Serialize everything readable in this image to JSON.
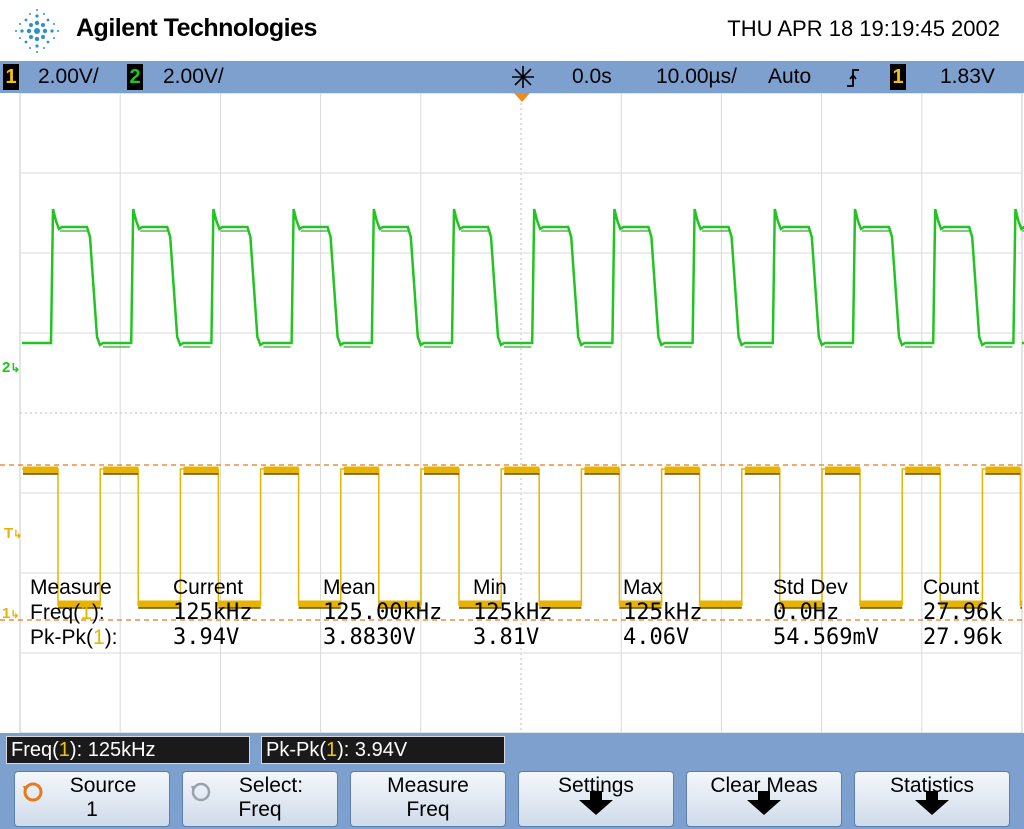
{
  "header": {
    "brand": "Agilent Technologies",
    "datetime": "THU APR 18 19:19:45 2002"
  },
  "statusbar": {
    "ch1_number": "1",
    "ch1_scale": "2.00V/",
    "ch2_number": "2",
    "ch2_scale": "2.00V/",
    "time_delay": "0.0s",
    "time_base": "10.00µs/",
    "trigger_mode": "Auto",
    "trigger_source": "1",
    "trigger_level": "1.83V"
  },
  "markers": {
    "ch2_ground": "2",
    "trigger": "T",
    "ch1_ground": "1"
  },
  "measurements": {
    "headers": [
      "Measure",
      "Current",
      "Mean",
      "Min",
      "Max",
      "Std Dev",
      "Count"
    ],
    "rows": [
      {
        "name_prefix": "Freq(",
        "channel": "1",
        "name_suffix": "):",
        "current": "125kHz",
        "mean": "125.00kHz",
        "min": "125kHz",
        "max": "125kHz",
        "std_dev": "0.0Hz",
        "count": "27.96k"
      },
      {
        "name_prefix": "Pk-Pk(",
        "channel": "1",
        "name_suffix": "):",
        "current": "3.94V",
        "mean": "3.8830V",
        "min": "3.81V",
        "max": "4.06V",
        "std_dev": "54.569mV",
        "count": "27.96k"
      }
    ]
  },
  "readouts": {
    "freq_prefix": "Freq(",
    "freq_channel": "1",
    "freq_suffix": "): 125kHz",
    "pkpk_prefix": "Pk-Pk(",
    "pkpk_channel": "1",
    "pkpk_suffix": "): 3.94V"
  },
  "softkeys": {
    "source_line1": "Source",
    "source_line2": "1",
    "select_line1": "Select:",
    "select_line2": "Freq",
    "measure_line1": "Measure",
    "measure_line2": "Freq",
    "settings": "Settings",
    "clear_meas": "Clear Meas",
    "statistics": "Statistics"
  },
  "colors": {
    "ch1_trace": "#e6b400",
    "ch2_trace": "#21c421",
    "status_bar": "#7da0cf"
  }
}
